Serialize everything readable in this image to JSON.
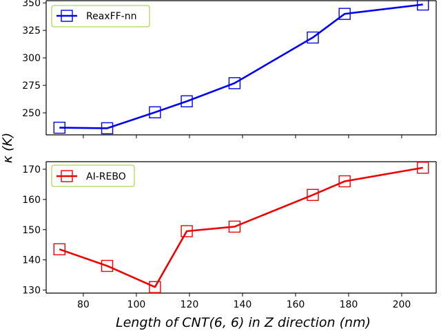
{
  "chart_data": {
    "type": "line",
    "xlabel": "Length of CNT(6, 6) in Z direction (nm)",
    "ylabel": "κ (K)",
    "xlim": [
      66,
      213
    ],
    "x_ticks": [
      80,
      100,
      120,
      140,
      160,
      180,
      200
    ],
    "x_tick_labels": [
      "80",
      "100",
      "120",
      "140",
      "160",
      "180",
      "200"
    ],
    "x": [
      71,
      89,
      107,
      119,
      137,
      166.5,
      178.5,
      208
    ],
    "panels": [
      {
        "name": "top",
        "ylim": [
          230,
          352
        ],
        "y_ticks": [
          250,
          275,
          300,
          325,
          350
        ],
        "y_tick_labels": [
          "250",
          "275",
          "300",
          "325",
          "350"
        ],
        "legend": "top-left",
        "series": [
          {
            "name": "ReaxFF-nn",
            "color": "#0000ee",
            "values": [
              236.5,
              236,
              250.5,
              260.5,
              277,
              318.5,
              340,
              348.5
            ]
          }
        ]
      },
      {
        "name": "bottom",
        "ylim": [
          129,
          172.5
        ],
        "y_ticks": [
          130,
          140,
          150,
          160,
          170
        ],
        "y_tick_labels": [
          "130",
          "140",
          "150",
          "160",
          "170"
        ],
        "legend": "top-left",
        "series": [
          {
            "name": "AI-REBO",
            "color": "#ee0000",
            "values": [
              143.5,
              138,
              131,
              149.5,
              151,
              161.5,
              166,
              170.5
            ]
          }
        ]
      }
    ]
  }
}
